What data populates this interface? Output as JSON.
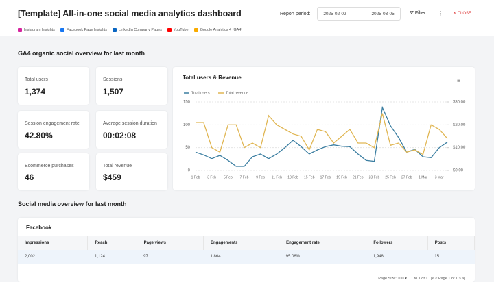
{
  "header": {
    "title": "[Template] All-in-one social media analytics dashboard",
    "report_period_label": "Report period:",
    "start_date": "2025-02-02",
    "end_date": "2025-03-05",
    "filter": "Filter",
    "close": "CLOSE",
    "sources": [
      "Instagram Insights",
      "Facebook Page Insights",
      "LinkedIn Company Pages",
      "YouTube",
      "Google Analytics 4 (GA4)"
    ]
  },
  "sections": [
    "GA4 organic social overview for last month",
    "Social media overview for last month"
  ],
  "kpis": [
    {
      "label": "Total users",
      "value": "1,374"
    },
    {
      "label": "Sessions",
      "value": "1,507"
    },
    {
      "label": "Session engagement rate",
      "value": "42.80%"
    },
    {
      "label": "Average session duration",
      "value": "00:02:08"
    },
    {
      "label": "Ecommerce purchases",
      "value": "46"
    },
    {
      "label": "Total revenue",
      "value": "$459"
    }
  ],
  "chart_data": {
    "type": "line",
    "title": "Total users & Revenue",
    "categories": [
      "1 Feb",
      null,
      "3 Feb",
      null,
      "5 Feb",
      null,
      "7 Feb",
      null,
      "9 Feb",
      null,
      "11 Feb",
      null,
      "13 Feb",
      null,
      "15 Feb",
      null,
      "17 Feb",
      null,
      "19 Feb",
      null,
      "21 Feb",
      null,
      "23 Feb",
      null,
      "25 Feb",
      null,
      "27 Feb",
      null,
      "1 Mar",
      null,
      "3 Mar",
      null
    ],
    "series": [
      {
        "name": "Total users",
        "color": "#3b7ea1",
        "values": [
          40,
          34,
          26,
          33,
          22,
          9,
          9,
          30,
          36,
          26,
          36,
          50,
          66,
          52,
          36,
          45,
          52,
          56,
          53,
          52,
          36,
          22,
          20,
          138,
          98,
          72,
          40,
          46,
          30,
          28,
          50,
          62
        ]
      },
      {
        "name": "Total revenue",
        "color": "#e0b653",
        "axis": "y2",
        "values": [
          21,
          21,
          10,
          8,
          20,
          20,
          10,
          12,
          10,
          24,
          20,
          18,
          16,
          15,
          9,
          18,
          17,
          12,
          15,
          18,
          12,
          12,
          10,
          25,
          11,
          12,
          8,
          9,
          7,
          20,
          18,
          14
        ]
      }
    ],
    "ylim": [
      0,
      150
    ],
    "yticks": [
      0,
      50,
      100,
      150
    ],
    "y2lim": [
      0,
      30
    ],
    "y2ticks": [
      {
        "value": 0,
        "label": "$0.00"
      },
      {
        "value": 10,
        "label": "$10.00"
      },
      {
        "value": 20,
        "label": "$20.00"
      },
      {
        "value": 30,
        "label": "$30.00"
      }
    ],
    "grid": true,
    "legend": "top-left"
  },
  "table": {
    "title": "Facebook",
    "columns": [
      "Impressions",
      "Reach",
      "Page views",
      "Engagements",
      "Engagement rate",
      "Followers",
      "Posts"
    ],
    "rows": [
      [
        "2,002",
        "1,124",
        "97",
        "1,864",
        "95.06%",
        "1,948",
        "15"
      ]
    ],
    "page_size_label": "Page Size:",
    "page_size": "100",
    "range": "1 to 1 of 1",
    "page": "Page 1 of 1"
  }
}
